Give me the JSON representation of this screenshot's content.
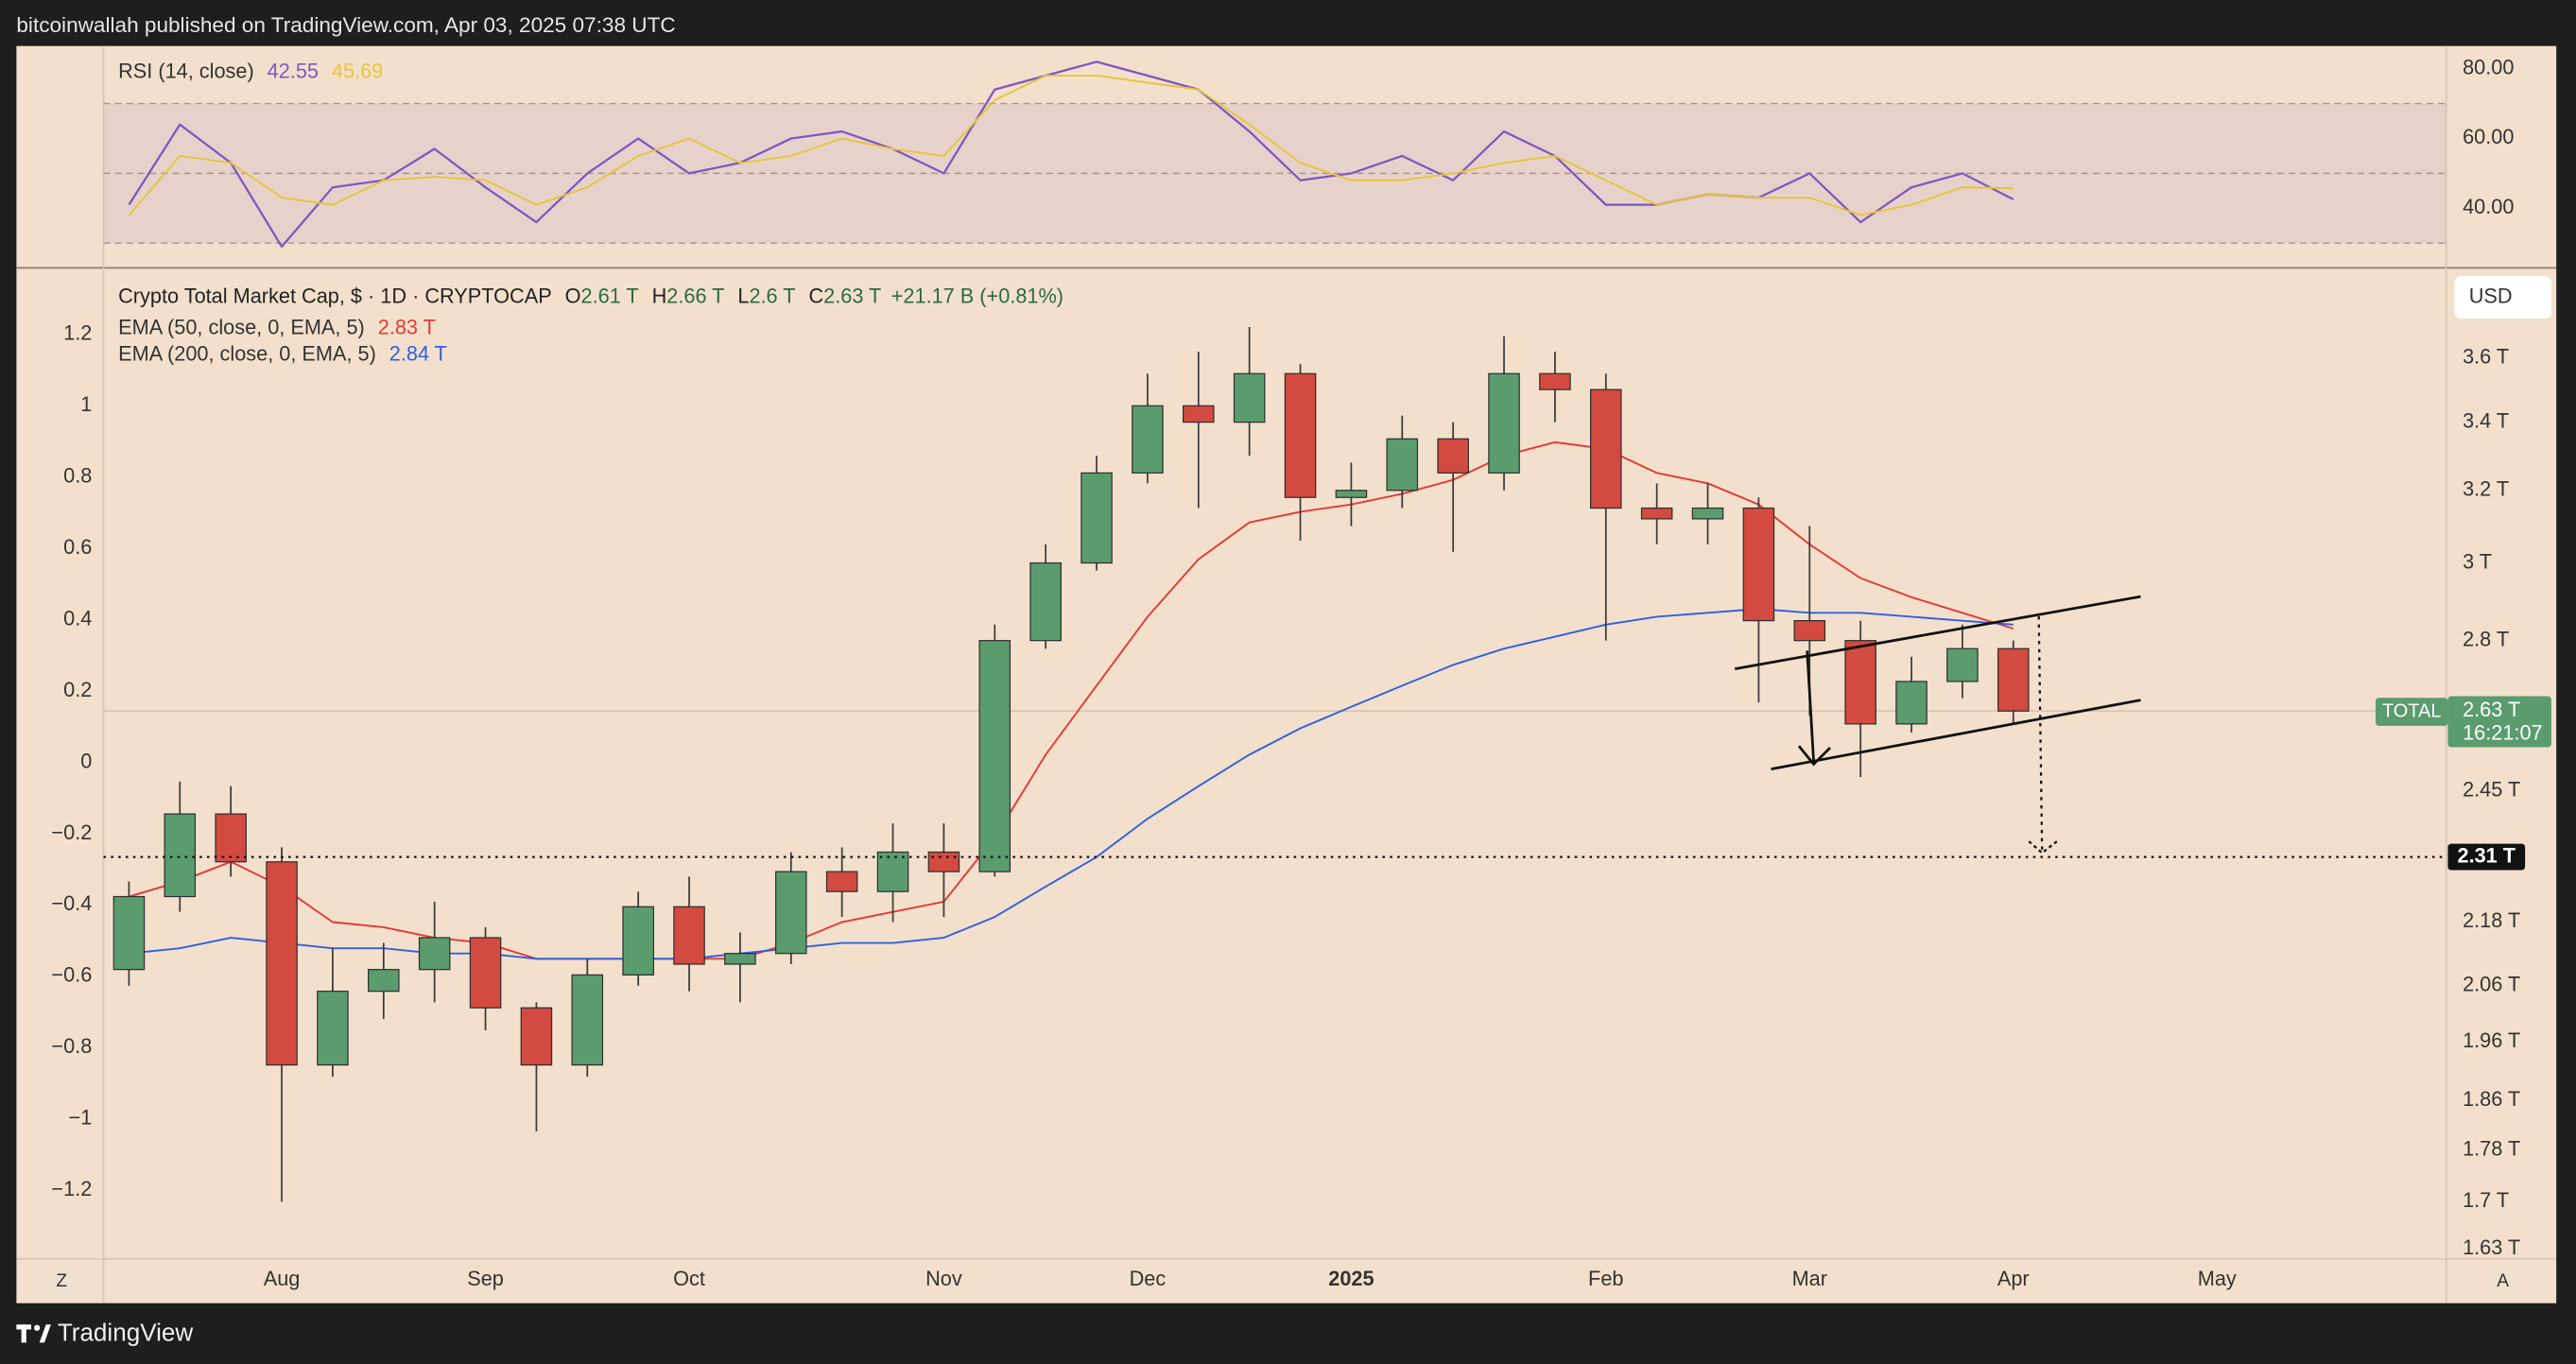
{
  "header": {
    "published": "bitcoinwallah published on TradingView.com, Apr 03, 2025 07:38 UTC"
  },
  "ui": {
    "currency": "USD",
    "scale_buttons": [
      "Z",
      "A"
    ]
  },
  "footer": {
    "brand": "TradingView"
  },
  "chart_data": [
    {
      "type": "candlestick",
      "title": "Crypto Total Market Cap, $ · 1D · CRYPTOCAP",
      "ohlc_header": [
        {
          "key": "O",
          "value": "2.61 T"
        },
        {
          "key": "H",
          "value": "2.66 T"
        },
        {
          "key": "L",
          "value": "2.6 T"
        },
        {
          "key": "C",
          "value": "2.63 T"
        }
      ],
      "change": "+21.17 B (+0.81%)",
      "categories": [
        null,
        null,
        null,
        "Aug",
        null,
        null,
        null,
        "Sep",
        null,
        null,
        null,
        "Oct",
        null,
        null,
        null,
        null,
        "Nov",
        null,
        null,
        null,
        "Dec",
        null,
        null,
        null,
        "2025",
        null,
        null,
        null,
        null,
        "Feb",
        null,
        null,
        null,
        "Mar",
        null,
        null,
        null,
        "Apr",
        null,
        null,
        null,
        "May",
        null,
        null,
        null,
        null
      ],
      "candles": {
        "up_color": "#5a9c6e",
        "down_color": "#d24a40",
        "open": [
          2.09,
          2.23,
          2.4,
          2.3,
          1.92,
          2.05,
          2.09,
          2.15,
          2.02,
          1.92,
          2.08,
          2.21,
          2.1,
          2.12,
          2.28,
          2.24,
          2.32,
          2.28,
          2.8,
          3.0,
          3.25,
          3.45,
          3.4,
          3.55,
          3.18,
          3.2,
          3.35,
          3.25,
          3.55,
          3.5,
          3.15,
          3.12,
          3.15,
          2.85,
          2.8,
          2.6,
          2.7,
          2.78,
          null,
          null,
          null,
          null,
          null,
          null,
          null,
          null
        ],
        "high": [
          2.26,
          2.47,
          2.46,
          2.33,
          2.13,
          2.14,
          2.22,
          2.17,
          2.03,
          2.11,
          2.24,
          2.27,
          2.16,
          2.32,
          2.33,
          2.38,
          2.38,
          2.84,
          3.05,
          3.3,
          3.55,
          3.62,
          3.7,
          3.58,
          3.28,
          3.42,
          3.4,
          3.67,
          3.62,
          3.55,
          3.22,
          3.22,
          3.18,
          3.1,
          2.85,
          2.76,
          2.84,
          2.8,
          null,
          null,
          null,
          null,
          null,
          null,
          null,
          null
        ],
        "low": [
          2.06,
          2.2,
          2.27,
          1.7,
          1.9,
          2.0,
          2.03,
          1.98,
          1.81,
          1.9,
          2.06,
          2.05,
          2.03,
          2.1,
          2.19,
          2.18,
          2.19,
          2.27,
          2.78,
          2.98,
          3.22,
          3.15,
          3.3,
          3.06,
          3.1,
          3.15,
          3.03,
          3.2,
          3.4,
          2.8,
          3.05,
          3.05,
          2.65,
          2.62,
          2.48,
          2.58,
          2.66,
          2.6,
          null,
          null,
          null,
          null,
          null,
          null,
          null,
          null
        ],
        "close": [
          2.23,
          2.4,
          2.3,
          1.92,
          2.05,
          2.09,
          2.15,
          2.02,
          1.92,
          2.08,
          2.21,
          2.1,
          2.12,
          2.28,
          2.24,
          2.32,
          2.28,
          2.8,
          3.0,
          3.25,
          3.45,
          3.4,
          3.55,
          3.18,
          3.2,
          3.35,
          3.25,
          3.55,
          3.5,
          3.15,
          3.12,
          3.15,
          2.85,
          2.8,
          2.6,
          2.7,
          2.78,
          2.63,
          null,
          null,
          null,
          null,
          null,
          null,
          null,
          null
        ]
      },
      "series": [
        {
          "name": "EMA (50, close, 0, EMA, 5)",
          "color": "#e53935",
          "last_label": "2.83 T",
          "values": [
            2.23,
            2.26,
            2.3,
            2.25,
            2.18,
            2.17,
            2.15,
            2.14,
            2.11,
            2.11,
            2.11,
            2.11,
            2.11,
            2.14,
            2.18,
            2.2,
            2.22,
            2.35,
            2.53,
            2.69,
            2.86,
            3.01,
            3.11,
            3.14,
            3.16,
            3.19,
            3.23,
            3.3,
            3.34,
            3.32,
            3.25,
            3.22,
            3.16,
            3.05,
            2.96,
            2.91,
            2.87,
            2.83,
            null,
            null,
            null,
            null,
            null,
            null,
            null,
            null
          ]
        },
        {
          "name": "EMA (200, close, 0, EMA, 5)",
          "color": "#2f5fe0",
          "last_label": "2.84 T",
          "values": [
            2.12,
            2.13,
            2.15,
            2.14,
            2.13,
            2.13,
            2.12,
            2.12,
            2.11,
            2.11,
            2.11,
            2.11,
            2.12,
            2.13,
            2.14,
            2.14,
            2.15,
            2.19,
            2.25,
            2.31,
            2.39,
            2.46,
            2.53,
            2.59,
            2.64,
            2.69,
            2.74,
            2.78,
            2.81,
            2.84,
            2.86,
            2.87,
            2.88,
            2.87,
            2.87,
            2.86,
            2.85,
            2.84,
            null,
            null,
            null,
            null,
            null,
            null,
            null,
            null
          ]
        }
      ],
      "yscale": "log",
      "ylim": [
        1.616,
        3.9
      ],
      "yticks": [
        {
          "value": 3.6,
          "label": "3.6 T"
        },
        {
          "value": 3.4,
          "label": "3.4 T"
        },
        {
          "value": 3.2,
          "label": "3.2 T"
        },
        {
          "value": 3,
          "label": "3 T"
        },
        {
          "value": 2.8,
          "label": "2.8 T"
        },
        {
          "value": 2.45,
          "label": "2.45 T"
        },
        {
          "value": 2.18,
          "label": "2.18 T"
        },
        {
          "value": 2.06,
          "label": "2.06 T"
        },
        {
          "value": 1.96,
          "label": "1.96 T"
        },
        {
          "value": 1.86,
          "label": "1.86 T"
        },
        {
          "value": 1.78,
          "label": "1.78 T"
        },
        {
          "value": 1.7,
          "label": "1.7 T"
        },
        {
          "value": 1.63,
          "label": "1.63 T"
        }
      ],
      "y2lim": [
        -1.392,
        1.387
      ],
      "y2ticks": [
        1.2,
        1,
        0.8,
        0.6,
        0.4,
        0.2,
        0,
        {
          "value": -0.2,
          "label": "−0.2"
        },
        {
          "value": -0.4,
          "label": "−0.4"
        },
        {
          "value": -0.6,
          "label": "−0.6"
        },
        {
          "value": -0.8,
          "label": "−0.8"
        },
        {
          "value": -1,
          "label": "−1"
        },
        {
          "value": -1.2,
          "label": "−1.2"
        }
      ],
      "hline": {
        "value": 2.31,
        "label": "2.31 T"
      },
      "price_label": {
        "name": "TOTAL",
        "value": 2.63,
        "label": "2.63 T",
        "countdown": "16:21:07",
        "color": "#5a9c6e"
      }
    },
    {
      "type": "line",
      "title": "RSI (14, close)",
      "series": [
        {
          "color": "#7e57c2",
          "values": [
            41,
            64,
            53,
            29,
            46,
            48,
            57,
            46,
            36,
            50,
            60,
            50,
            53,
            60,
            62,
            57,
            50,
            74,
            78,
            82,
            78,
            74,
            62,
            48,
            50,
            55,
            48,
            62,
            55,
            41,
            41,
            44,
            43,
            50,
            36,
            46,
            50,
            42.55,
            null,
            null,
            null,
            null,
            null,
            null,
            null,
            null
          ]
        },
        {
          "color": "#e8c33a",
          "values": [
            38,
            55,
            53,
            43,
            41,
            48,
            49,
            48,
            41,
            46,
            55,
            60,
            53,
            55,
            60,
            57,
            55,
            71,
            78,
            78,
            76,
            74,
            64,
            53,
            48,
            48,
            50,
            53,
            55,
            48,
            41,
            44,
            43,
            43,
            38,
            41,
            46,
            45.69,
            null,
            null,
            null,
            null,
            null,
            null,
            null,
            null
          ]
        }
      ],
      "ylim": [
        22.9,
        86.5
      ],
      "yticks": [
        {
          "value": 80,
          "label": "80.00"
        },
        {
          "value": 60,
          "label": "60.00"
        },
        {
          "value": 40,
          "label": "40.00"
        }
      ],
      "band": [
        30,
        70
      ],
      "band_color": "#7e57c2",
      "levels": [
        70,
        50,
        30
      ]
    }
  ]
}
